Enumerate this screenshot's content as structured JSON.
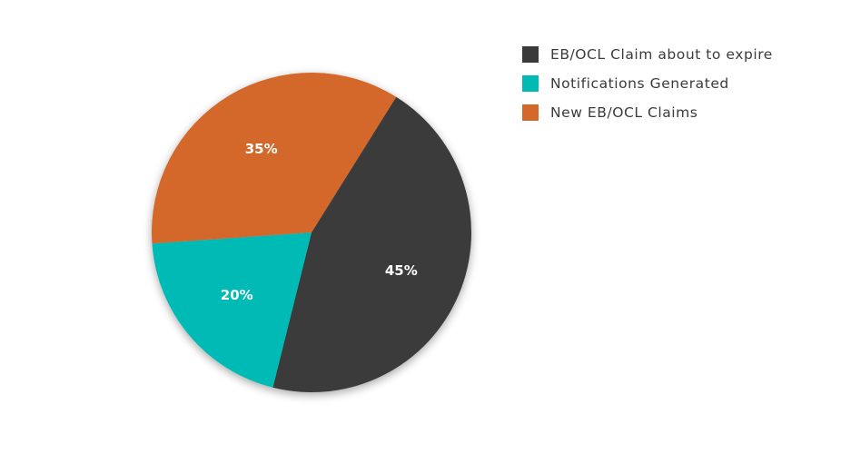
{
  "chart_data": {
    "type": "pie",
    "slices": [
      {
        "label": "EB/OCL Claim about to expire",
        "value": 45,
        "display": "45%",
        "color": "#3a3a3a"
      },
      {
        "label": "Notifications Generated",
        "value": 20,
        "display": "20%",
        "color": "#00bab5"
      },
      {
        "label": "New EB/OCL Claims",
        "value": 35,
        "display": "35%",
        "color": "#d4672a"
      }
    ],
    "legend_position": "top-right"
  }
}
